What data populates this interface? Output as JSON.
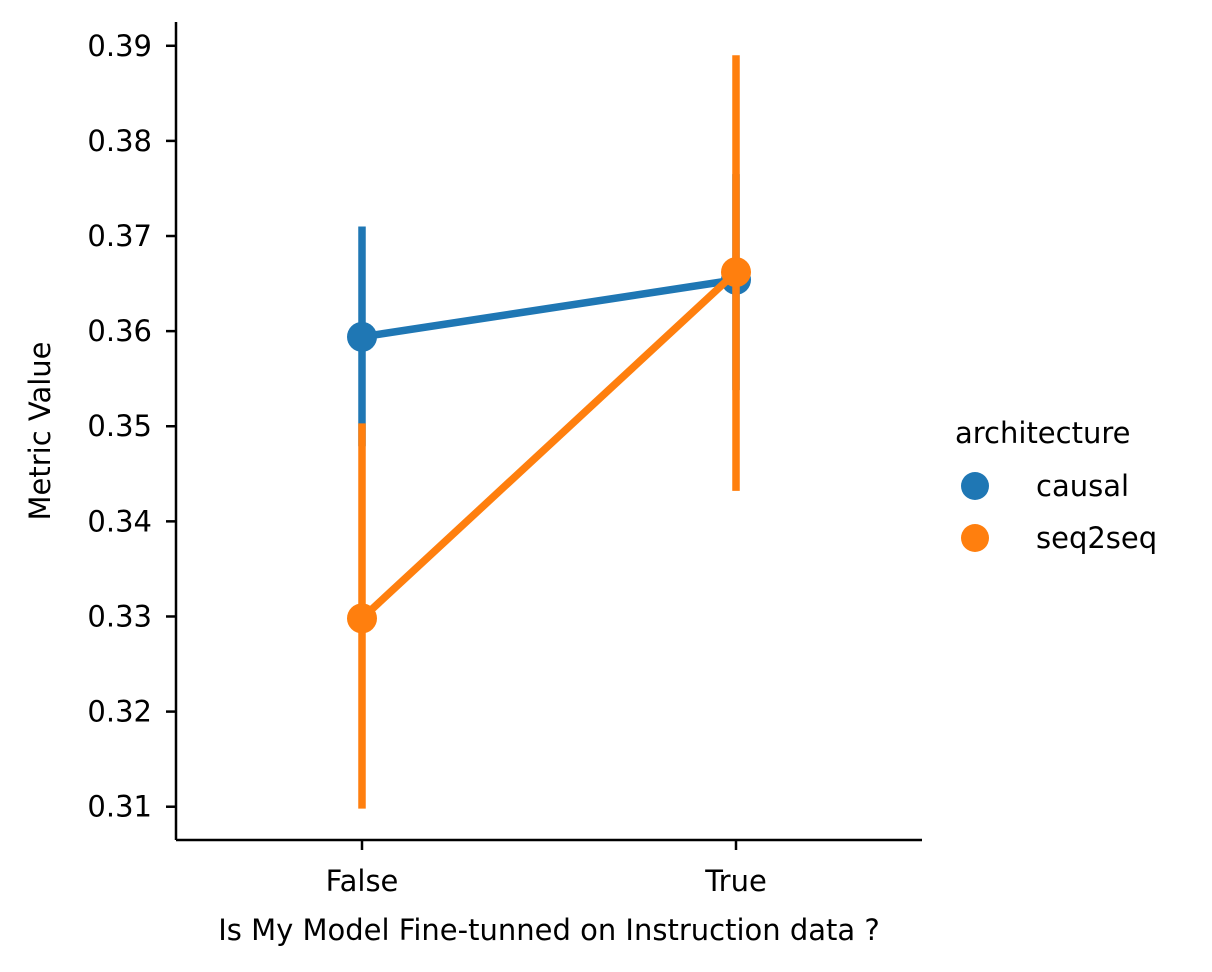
{
  "chart_data": {
    "type": "line",
    "title": "",
    "xlabel": "Is My Model Fine-tunned on Instruction data ?",
    "ylabel": "Metric Value",
    "categories": [
      "False",
      "True"
    ],
    "ylim": [
      0.3065,
      0.3925
    ],
    "yticks": [
      0.31,
      0.32,
      0.33,
      0.34,
      0.35,
      0.36,
      0.37,
      0.38,
      0.39
    ],
    "ytick_labels": [
      "0.31",
      "0.32",
      "0.33",
      "0.34",
      "0.35",
      "0.36",
      "0.37",
      "0.38",
      "0.39"
    ],
    "grid": false,
    "legend": {
      "title": "architecture",
      "placement": "right"
    },
    "series": [
      {
        "name": "causal",
        "color": "#1f77b4",
        "values": [
          0.3594,
          0.3654
        ],
        "ci_low": [
          0.3479,
          0.3538
        ],
        "ci_high": [
          0.371,
          0.3765
        ]
      },
      {
        "name": "seq2seq",
        "color": "#ff7f0e",
        "values": [
          0.3298,
          0.3662
        ],
        "ci_low": [
          0.3098,
          0.3432
        ],
        "ci_high": [
          0.3503,
          0.389
        ]
      }
    ]
  }
}
